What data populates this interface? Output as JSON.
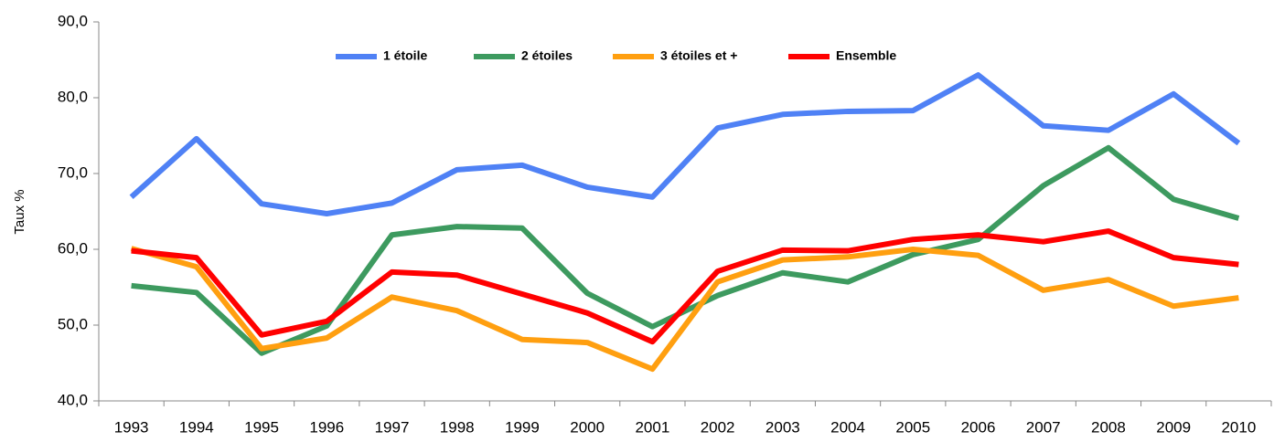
{
  "chart_data": {
    "type": "line",
    "y_label": "Taux %",
    "categories": [
      "1993",
      "1994",
      "1995",
      "1996",
      "1997",
      "1998",
      "1999",
      "2000",
      "2001",
      "2002",
      "2003",
      "2004",
      "2005",
      "2006",
      "2007",
      "2008",
      "2009",
      "2010"
    ],
    "series": [
      {
        "name": "1 étoile",
        "color": "#4f81f5",
        "values": [
          66.9,
          74.6,
          66.0,
          64.7,
          66.1,
          70.5,
          71.1,
          68.2,
          66.9,
          76.0,
          77.8,
          78.2,
          78.3,
          83.0,
          76.3,
          75.7,
          80.5,
          74.0
        ]
      },
      {
        "name": "2 étoiles",
        "color": "#3d9a5f",
        "values": [
          55.2,
          54.3,
          46.3,
          49.9,
          61.9,
          63.0,
          62.8,
          54.2,
          49.8,
          53.9,
          56.9,
          55.7,
          59.3,
          61.3,
          68.4,
          73.4,
          66.6,
          64.1
        ]
      },
      {
        "name": "3 étoiles et +",
        "color": "#ff9f10",
        "values": [
          60.1,
          57.7,
          46.9,
          48.3,
          53.7,
          51.9,
          48.1,
          47.7,
          44.2,
          55.7,
          58.6,
          59.0,
          60.0,
          59.2,
          54.6,
          56.0,
          52.5,
          53.6
        ]
      },
      {
        "name": "Ensemble",
        "color": "#ff0000",
        "values": [
          59.8,
          58.9,
          48.7,
          50.5,
          57.0,
          56.6,
          54.1,
          51.6,
          47.8,
          57.1,
          59.9,
          59.8,
          61.3,
          61.9,
          61.0,
          62.4,
          58.9,
          58.0
        ]
      }
    ],
    "ylim": [
      40,
      90
    ],
    "yticks": [
      {
        "value": 40,
        "label": "40,0"
      },
      {
        "value": 50,
        "label": "50,0"
      },
      {
        "value": 60,
        "label": "60,0"
      },
      {
        "value": 70,
        "label": "70,0"
      },
      {
        "value": 80,
        "label": "80,0"
      },
      {
        "value": 90,
        "label": "90,0"
      }
    ],
    "legend": "top",
    "grid": false
  }
}
